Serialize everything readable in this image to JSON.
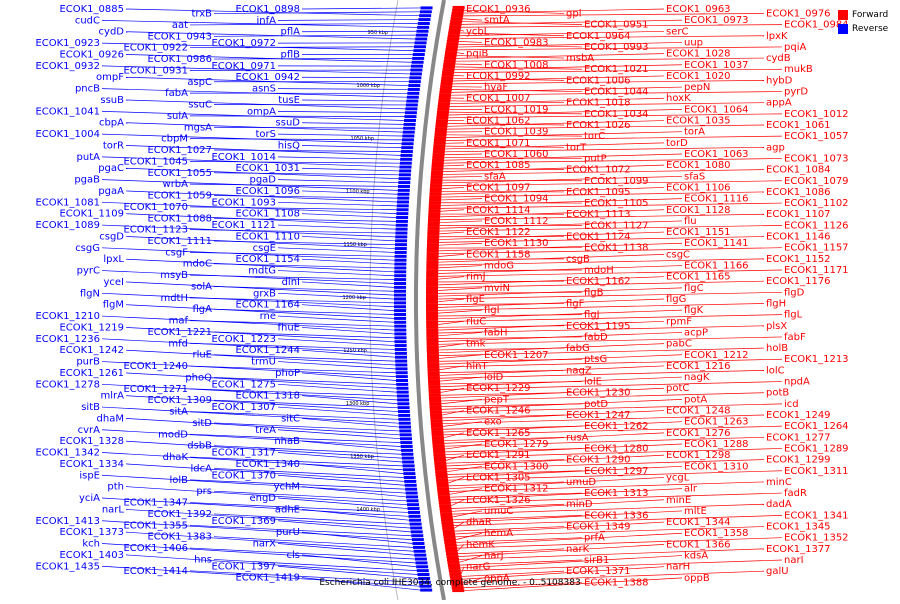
{
  "caption": "Escherichia coli IHE3034, complete genome. - 0..5108383",
  "legend": [
    {
      "label": "Forward",
      "color": "#ff0000"
    },
    {
      "label": "Reverse",
      "color": "#0000ff"
    }
  ],
  "colors": {
    "forward": "#ff0000",
    "reverse": "#0000ff",
    "backbone": "#888888"
  },
  "scale_marks": [
    "950 kbp",
    "1000 kbp",
    "1050 kbp",
    "1100 kbp",
    "1150 kbp",
    "1200 kbp",
    "1250 kbp",
    "1300 kbp",
    "1350 kbp",
    "1400 kbp"
  ],
  "reverse_labels": [
    "ECOK1_0898",
    "trxB",
    "ECOK1_0885",
    "infA",
    "aat",
    "cudC",
    "pflA",
    "ECOK1_0943",
    "cydD",
    "ECOK1_0972",
    "ECOK1_0922",
    "ECOK1_0923",
    "pflB",
    "ECOK1_0986",
    "ECOK1_0926",
    "ECOK1_0971",
    "ECOK1_0931",
    "ECOK1_0932",
    "ECOK1_0942",
    "aspC",
    "ompF",
    "asnS",
    "fabA",
    "pncB",
    "tusE",
    "ssuC",
    "ssuB",
    "ompA",
    "sulA",
    "ECOK1_1041",
    "ssuD",
    "mgsA",
    "cbpA",
    "torS",
    "cbpM",
    "ECOK1_1004",
    "hisQ",
    "ECOK1_1027",
    "torR",
    "ECOK1_1014",
    "ECOK1_1045",
    "putA",
    "ECOK1_1031",
    "ECOK1_1055",
    "pgaC",
    "pgaD",
    "wrbA",
    "pgaB",
    "ECOK1_1096",
    "ECOK1_1059",
    "pgaA",
    "ECOK1_1093",
    "ECOK1_1070",
    "ECOK1_1081",
    "ECOK1_1108",
    "ECOK1_1088",
    "ECOK1_1109",
    "ECOK1_1121",
    "ECOK1_1123",
    "ECOK1_1089",
    "ECOK1_1110",
    "ECOK1_1111",
    "csgD",
    "csgE",
    "csgF",
    "csgG",
    "ECOK1_1154",
    "mdoC",
    "lpxL",
    "mdtG",
    "msyB",
    "pyrC",
    "dinI",
    "solA",
    "yceI",
    "grxB",
    "mdtH",
    "flgN",
    "ECOK1_1164",
    "flgA",
    "flgM",
    "rne",
    "maf",
    "ECOK1_1210",
    "fhuE",
    "ECOK1_1221",
    "ECOK1_1219",
    "ECOK1_1223",
    "mfd",
    "ECOK1_1236",
    "ECOK1_1244",
    "rluE",
    "ECOK1_1242",
    "trmU",
    "ECOK1_1240",
    "purB",
    "phoP",
    "phoQ",
    "ECOK1_1261",
    "ECOK1_1275",
    "ECOK1_1271",
    "ECOK1_1278",
    "ECOK1_1318",
    "ECOK1_1309",
    "mlrA",
    "ECOK1_1307",
    "sitA",
    "sitB",
    "sitC",
    "sitD",
    "dhaM",
    "treA",
    "modD",
    "cvrA",
    "nhaB",
    "dsbB",
    "ECOK1_1328",
    "ECOK1_1317",
    "dhaK",
    "ECOK1_1342",
    "ECOK1_1340",
    "ldcA",
    "ECOK1_1334",
    "ECOK1_1370",
    "lolB",
    "ispE",
    "ychM",
    "prs",
    "pth",
    "engD",
    "ECOK1_1347",
    "yciA",
    "adhE",
    "ECOK1_1392",
    "narL",
    "ECOK1_1369",
    "ECOK1_1355",
    "ECOK1_1413",
    "purU",
    "ECOK1_1383",
    "ECOK1_1373",
    "narX",
    "ECOK1_1406",
    "kch",
    "cls",
    "hns",
    "ECOK1_1403",
    "ECOK1_1397",
    "ECOK1_1414",
    "ECOK1_1435",
    "ECOK1_1419"
  ],
  "forward_labels": [
    "ECOK1_0936",
    "gpl",
    "ECOK1_0963",
    "ECOK1_0976",
    "smtA",
    "ECOK1_0951",
    "ECOK1_0973",
    "ECOK1_0984",
    "ycbL",
    "ECOK1_0964",
    "serC",
    "lpxK",
    "ECOK1_0983",
    "ECOK1_0993",
    "uup",
    "pqiA",
    "pqiB",
    "msbA",
    "ECOK1_1028",
    "cydB",
    "ECOK1_1008",
    "ECOK1_1021",
    "ECOK1_1037",
    "mukB",
    "ECOK1_0992",
    "ECOK1_1006",
    "ECOK1_1020",
    "hybD",
    "hyaF",
    "ECOK1_1044",
    "pepN",
    "pyrD",
    "ECOK1_1007",
    "ECOK1_1018",
    "hoxK",
    "appA",
    "ECOK1_1019",
    "ECOK1_1034",
    "ECOK1_1064",
    "ECOK1_1012",
    "ECOK1_1062",
    "ECOK1_1026",
    "ECOK1_1035",
    "ECOK1_1061",
    "ECOK1_1039",
    "torC",
    "torA",
    "ECOK1_1057",
    "ECOK1_1071",
    "torT",
    "torD",
    "agp",
    "ECOK1_1060",
    "putP",
    "ECOK1_1063",
    "ECOK1_1073",
    "ECOK1_1085",
    "ECOK1_1072",
    "ECOK1_1080",
    "ECOK1_1084",
    "sfaA",
    "ECOK1_1099",
    "sfaS",
    "ECOK1_1079",
    "ECOK1_1097",
    "ECOK1_1095",
    "ECOK1_1106",
    "ECOK1_1086",
    "ECOK1_1094",
    "ECOK1_1105",
    "ECOK1_1116",
    "ECOK1_1102",
    "ECOK1_1114",
    "ECOK1_1113",
    "ECOK1_1128",
    "ECOK1_1107",
    "ECOK1_1112",
    "ECOK1_1127",
    "flu",
    "ECOK1_1126",
    "ECOK1_1122",
    "ECOK1_1124",
    "ECOK1_1151",
    "ECOK1_1146",
    "ECOK1_1130",
    "ECOK1_1138",
    "ECOK1_1141",
    "ECOK1_1157",
    "ECOK1_1158",
    "csgB",
    "csgC",
    "ECOK1_1152",
    "mdoG",
    "mdoH",
    "ECOK1_1166",
    "ECOK1_1171",
    "rimJ",
    "ECOK1_1162",
    "ECOK1_1165",
    "ECOK1_1176",
    "mviN",
    "flgB",
    "flgC",
    "flgD",
    "flgE",
    "flgF",
    "flgG",
    "flgH",
    "flgI",
    "flgJ",
    "flgK",
    "flgL",
    "rluC",
    "ECOK1_1195",
    "rpmF",
    "plsX",
    "fabH",
    "fabD",
    "acpP",
    "fabF",
    "tmk",
    "fabG",
    "pabC",
    "holB",
    "ECOK1_1207",
    "ptsG",
    "ECOK1_1212",
    "ECOK1_1213",
    "hinT",
    "nagZ",
    "ECOK1_1216",
    "lolC",
    "lolD",
    "lolE",
    "nagK",
    "npdA",
    "ECOK1_1229",
    "ECOK1_1230",
    "potC",
    "potB",
    "pepT",
    "potD",
    "potA",
    "icd",
    "ECOK1_1246",
    "ECOK1_1247",
    "ECOK1_1248",
    "ECOK1_1249",
    "exo",
    "ECOK1_1262",
    "ECOK1_1263",
    "ECOK1_1264",
    "ECOK1_1265",
    "rusA",
    "ECOK1_1276",
    "ECOK1_1277",
    "ECOK1_1279",
    "ECOK1_1280",
    "ECOK1_1288",
    "ECOK1_1289",
    "ECOK1_1291",
    "ECOK1_1290",
    "ECOK1_1298",
    "ECOK1_1299",
    "ECOK1_1300",
    "ECOK1_1297",
    "ECOK1_1310",
    "ECOK1_1311",
    "ECOK1_1305",
    "umuD",
    "ycgL",
    "minC",
    "ECOK1_1312",
    "ECOK1_1313",
    "alr",
    "fadR",
    "ECOK1_1326",
    "minD",
    "minE",
    "dadA",
    "umuC",
    "ECOK1_1336",
    "mltE",
    "ECOK1_1341",
    "dhaR",
    "ECOK1_1349",
    "ECOK1_1344",
    "ECOK1_1345",
    "hemA",
    "prfA",
    "ECOK1_1358",
    "ECOK1_1352",
    "hemK",
    "narK",
    "ECOK1_1366",
    "ECOK1_1377",
    "narJ",
    "sirB1",
    "kdsA",
    "narI",
    "narG",
    "ECOK1_1371",
    "narH",
    "galU",
    "oppA",
    "ECOK1_1388",
    "oppB"
  ]
}
